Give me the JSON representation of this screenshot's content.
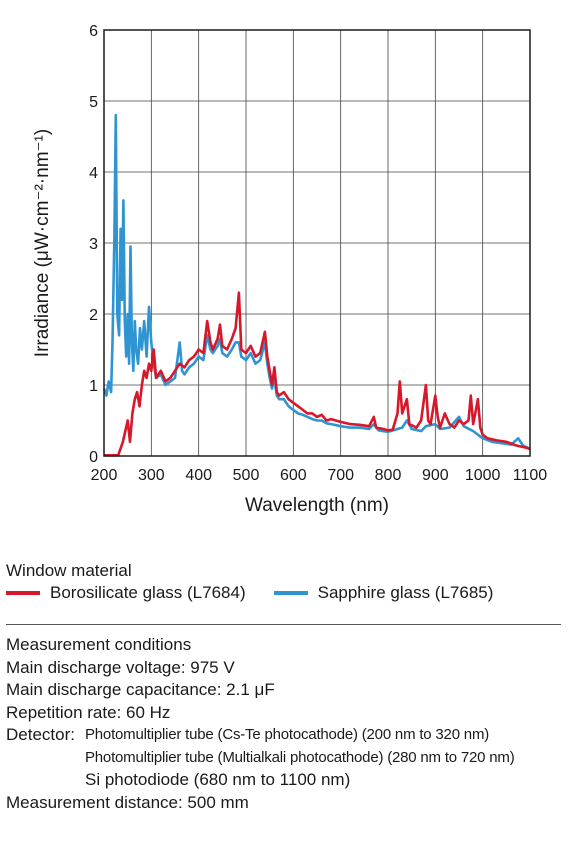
{
  "chart_data": {
    "type": "line",
    "xlabel": "Wavelength (nm)",
    "ylabel": "Irradiance (μW·cm⁻²·nm⁻¹)",
    "xlim": [
      200,
      1100
    ],
    "ylim": [
      0,
      6
    ],
    "xticks": [
      "200",
      "300",
      "400",
      "500",
      "600",
      "700",
      "800",
      "900",
      "1000",
      "1100"
    ],
    "yticks": [
      "0",
      "1",
      "2",
      "3",
      "4",
      "5",
      "6"
    ],
    "grid": true,
    "legend_title": "Window material",
    "series": [
      {
        "name": "Borosilicate glass (L7684)",
        "color": "#d7182a",
        "points": [
          [
            200,
            0.01
          ],
          [
            230,
            0.01
          ],
          [
            240,
            0.2
          ],
          [
            250,
            0.5
          ],
          [
            255,
            0.2
          ],
          [
            260,
            0.6
          ],
          [
            265,
            0.8
          ],
          [
            270,
            0.9
          ],
          [
            275,
            0.7
          ],
          [
            280,
            1.0
          ],
          [
            285,
            1.2
          ],
          [
            290,
            1.1
          ],
          [
            295,
            1.3
          ],
          [
            300,
            1.2
          ],
          [
            305,
            1.5
          ],
          [
            310,
            1.1
          ],
          [
            320,
            1.2
          ],
          [
            330,
            1.05
          ],
          [
            340,
            1.1
          ],
          [
            350,
            1.2
          ],
          [
            360,
            1.3
          ],
          [
            370,
            1.25
          ],
          [
            380,
            1.35
          ],
          [
            390,
            1.4
          ],
          [
            400,
            1.5
          ],
          [
            410,
            1.45
          ],
          [
            418,
            1.9
          ],
          [
            425,
            1.6
          ],
          [
            430,
            1.5
          ],
          [
            440,
            1.65
          ],
          [
            445,
            1.85
          ],
          [
            450,
            1.55
          ],
          [
            460,
            1.5
          ],
          [
            470,
            1.65
          ],
          [
            478,
            1.8
          ],
          [
            485,
            2.3
          ],
          [
            490,
            1.5
          ],
          [
            500,
            1.45
          ],
          [
            510,
            1.55
          ],
          [
            520,
            1.4
          ],
          [
            530,
            1.45
          ],
          [
            540,
            1.75
          ],
          [
            545,
            1.4
          ],
          [
            550,
            1.2
          ],
          [
            555,
            1.0
          ],
          [
            560,
            1.25
          ],
          [
            565,
            0.9
          ],
          [
            570,
            0.85
          ],
          [
            580,
            0.9
          ],
          [
            590,
            0.8
          ],
          [
            600,
            0.75
          ],
          [
            610,
            0.7
          ],
          [
            620,
            0.65
          ],
          [
            630,
            0.6
          ],
          [
            640,
            0.6
          ],
          [
            650,
            0.55
          ],
          [
            660,
            0.58
          ],
          [
            670,
            0.5
          ],
          [
            680,
            0.52
          ],
          [
            700,
            0.48
          ],
          [
            720,
            0.45
          ],
          [
            740,
            0.44
          ],
          [
            760,
            0.42
          ],
          [
            770,
            0.55
          ],
          [
            775,
            0.4
          ],
          [
            790,
            0.38
          ],
          [
            800,
            0.36
          ],
          [
            810,
            0.37
          ],
          [
            820,
            0.6
          ],
          [
            825,
            1.05
          ],
          [
            830,
            0.6
          ],
          [
            840,
            0.8
          ],
          [
            845,
            0.45
          ],
          [
            860,
            0.4
          ],
          [
            870,
            0.5
          ],
          [
            880,
            1.0
          ],
          [
            885,
            0.5
          ],
          [
            890,
            0.45
          ],
          [
            900,
            0.85
          ],
          [
            905,
            0.55
          ],
          [
            910,
            0.4
          ],
          [
            920,
            0.6
          ],
          [
            930,
            0.45
          ],
          [
            940,
            0.4
          ],
          [
            950,
            0.5
          ],
          [
            960,
            0.45
          ],
          [
            970,
            0.5
          ],
          [
            975,
            0.85
          ],
          [
            980,
            0.45
          ],
          [
            990,
            0.8
          ],
          [
            995,
            0.4
          ],
          [
            1000,
            0.3
          ],
          [
            1010,
            0.25
          ],
          [
            1030,
            0.22
          ],
          [
            1050,
            0.2
          ],
          [
            1070,
            0.15
          ],
          [
            1090,
            0.12
          ],
          [
            1100,
            0.1
          ]
        ]
      },
      {
        "name": "Sapphire glass (L7685)",
        "color": "#2f95d2",
        "points": [
          [
            200,
            0.95
          ],
          [
            205,
            0.85
          ],
          [
            210,
            1.05
          ],
          [
            215,
            0.9
          ],
          [
            218,
            1.6
          ],
          [
            222,
            3.1
          ],
          [
            225,
            4.8
          ],
          [
            228,
            2.0
          ],
          [
            232,
            1.7
          ],
          [
            235,
            3.2
          ],
          [
            238,
            2.2
          ],
          [
            241,
            3.6
          ],
          [
            244,
            1.9
          ],
          [
            247,
            1.4
          ],
          [
            250,
            2.0
          ],
          [
            253,
            1.3
          ],
          [
            256,
            2.95
          ],
          [
            259,
            1.6
          ],
          [
            262,
            1.2
          ],
          [
            265,
            1.9
          ],
          [
            268,
            1.5
          ],
          [
            272,
            1.3
          ],
          [
            276,
            1.8
          ],
          [
            280,
            1.5
          ],
          [
            285,
            1.9
          ],
          [
            290,
            1.4
          ],
          [
            295,
            2.1
          ],
          [
            300,
            1.6
          ],
          [
            305,
            1.3
          ],
          [
            310,
            1.1
          ],
          [
            320,
            1.15
          ],
          [
            330,
            1.0
          ],
          [
            340,
            1.05
          ],
          [
            350,
            1.1
          ],
          [
            360,
            1.6
          ],
          [
            365,
            1.2
          ],
          [
            370,
            1.15
          ],
          [
            380,
            1.25
          ],
          [
            390,
            1.3
          ],
          [
            400,
            1.4
          ],
          [
            410,
            1.35
          ],
          [
            418,
            1.7
          ],
          [
            425,
            1.5
          ],
          [
            430,
            1.45
          ],
          [
            440,
            1.55
          ],
          [
            445,
            1.65
          ],
          [
            450,
            1.45
          ],
          [
            460,
            1.4
          ],
          [
            470,
            1.5
          ],
          [
            478,
            1.6
          ],
          [
            485,
            1.6
          ],
          [
            490,
            1.4
          ],
          [
            500,
            1.35
          ],
          [
            510,
            1.45
          ],
          [
            520,
            1.3
          ],
          [
            530,
            1.35
          ],
          [
            540,
            1.6
          ],
          [
            545,
            1.3
          ],
          [
            550,
            1.1
          ],
          [
            555,
            0.95
          ],
          [
            560,
            1.1
          ],
          [
            565,
            0.85
          ],
          [
            570,
            0.8
          ],
          [
            580,
            0.8
          ],
          [
            590,
            0.7
          ],
          [
            600,
            0.65
          ],
          [
            610,
            0.6
          ],
          [
            620,
            0.58
          ],
          [
            630,
            0.55
          ],
          [
            640,
            0.52
          ],
          [
            650,
            0.5
          ],
          [
            660,
            0.5
          ],
          [
            670,
            0.46
          ],
          [
            680,
            0.45
          ],
          [
            700,
            0.42
          ],
          [
            720,
            0.4
          ],
          [
            740,
            0.4
          ],
          [
            760,
            0.38
          ],
          [
            770,
            0.45
          ],
          [
            780,
            0.36
          ],
          [
            800,
            0.34
          ],
          [
            820,
            0.38
          ],
          [
            830,
            0.4
          ],
          [
            840,
            0.5
          ],
          [
            850,
            0.38
          ],
          [
            870,
            0.35
          ],
          [
            880,
            0.42
          ],
          [
            900,
            0.45
          ],
          [
            910,
            0.38
          ],
          [
            930,
            0.4
          ],
          [
            950,
            0.55
          ],
          [
            960,
            0.42
          ],
          [
            980,
            0.35
          ],
          [
            1000,
            0.25
          ],
          [
            1020,
            0.2
          ],
          [
            1040,
            0.18
          ],
          [
            1060,
            0.16
          ],
          [
            1075,
            0.25
          ],
          [
            1085,
            0.15
          ],
          [
            1100,
            0.1
          ]
        ]
      }
    ]
  },
  "conditions": {
    "heading": "Measurement conditions",
    "voltage": "Main discharge voltage: 975 V",
    "capacitance": "Main discharge capacitance: 2.1 μF",
    "rate": "Repetition rate: 60 Hz",
    "detector_label": "Detector:",
    "detector_1": "Photomultiplier tube (Cs-Te photocathode) (200 nm to 320 nm)",
    "detector_2": "Photomultiplier tube (Multialkali photocathode) (280 nm to 720 nm)",
    "detector_3": "Si photodiode (680 nm to 1100 nm)",
    "distance": "Measurement distance: 500 mm"
  }
}
